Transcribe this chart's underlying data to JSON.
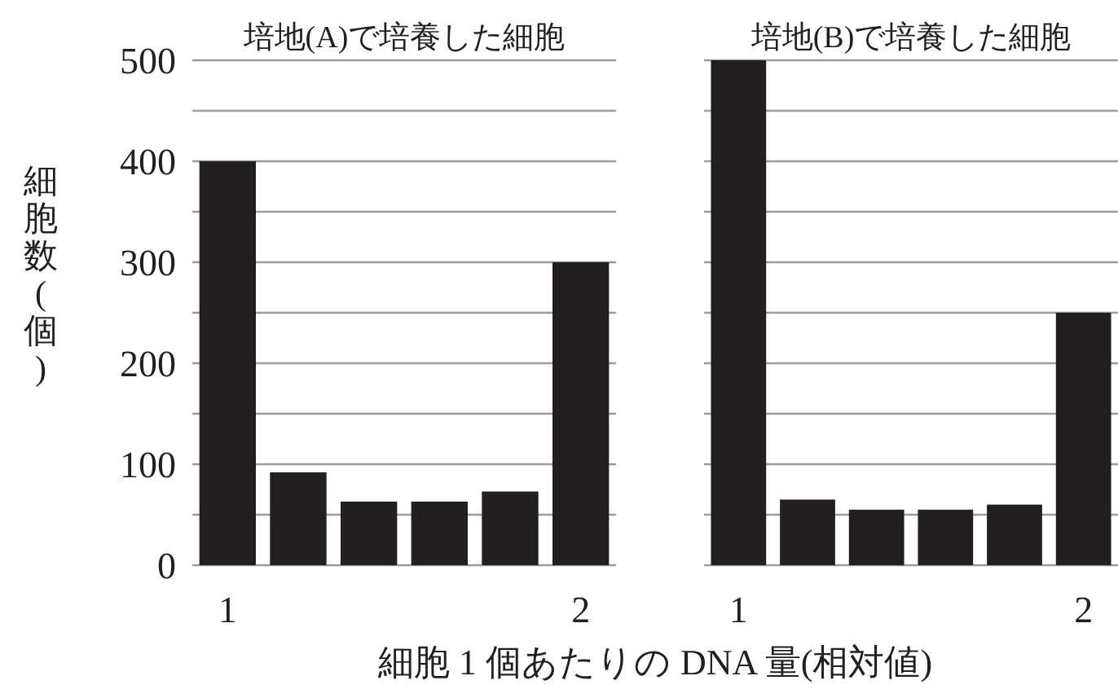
{
  "chart_data": [
    {
      "type": "bar",
      "title": "培地(A)で培養した細胞",
      "ylabel": "細胞数(個)",
      "xlabel": "細胞 1 個あたりの DNA 量(相対値)",
      "categories": [
        "1",
        null,
        null,
        null,
        null,
        "2"
      ],
      "values": [
        400,
        92,
        63,
        63,
        73,
        300
      ],
      "color": "#231f20",
      "ylim": [
        0,
        500
      ],
      "yticks": [
        0,
        {
          "value": 50,
          "label": null
        },
        100,
        {
          "value": 150,
          "label": null
        },
        200,
        {
          "value": 250,
          "label": null
        },
        300,
        {
          "value": 350,
          "label": null
        },
        400,
        {
          "value": 450,
          "label": null
        },
        500
      ],
      "grid": "y"
    },
    {
      "type": "bar",
      "title": "培地(B)で培養した細胞",
      "categories": [
        "1",
        null,
        null,
        null,
        null,
        "2"
      ],
      "values": [
        500,
        65,
        55,
        55,
        60,
        250
      ],
      "color": "#231f20",
      "ylim": [
        0,
        500
      ],
      "yticks": [
        0,
        {
          "value": 50,
          "label": null
        },
        100,
        {
          "value": 150,
          "label": null
        },
        200,
        {
          "value": 250,
          "label": null
        },
        300,
        {
          "value": 350,
          "label": null
        },
        400,
        {
          "value": 450,
          "label": null
        },
        500
      ],
      "grid": "y",
      "tick_labels": "x"
    }
  ]
}
